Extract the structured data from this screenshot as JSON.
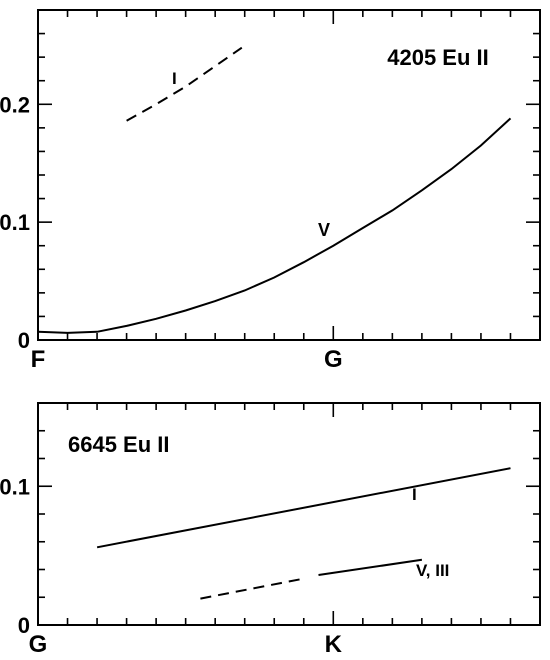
{
  "chart_data": [
    {
      "type": "line",
      "title": "4205  Eu II",
      "xlabel": "",
      "ylabel": "",
      "x_ticks": [
        {
          "label": "F",
          "x": 0
        },
        {
          "label": "G",
          "x": 10
        }
      ],
      "xlim": [
        0,
        17
      ],
      "ylim": [
        0,
        0.28
      ],
      "y_ticks": [
        {
          "label": "0",
          "value": 0
        },
        {
          "label": "0.1",
          "value": 0.1
        },
        {
          "label": "0.2",
          "value": 0.2
        }
      ],
      "series": [
        {
          "name": "I",
          "style": "dashed",
          "x": [
            3,
            4,
            5,
            6.9
          ],
          "y": [
            0.186,
            0.2,
            0.215,
            0.248
          ]
        },
        {
          "name": "V",
          "style": "solid",
          "x": [
            0,
            1,
            2,
            3,
            4,
            5,
            6,
            7,
            8,
            9,
            10,
            11,
            12,
            13,
            14,
            15,
            16
          ],
          "y": [
            0.007,
            0.006,
            0.007,
            0.012,
            0.018,
            0.025,
            0.033,
            0.042,
            0.053,
            0.066,
            0.08,
            0.095,
            0.11,
            0.127,
            0.145,
            0.165,
            0.188
          ]
        }
      ],
      "grid": false,
      "legend": "none"
    },
    {
      "type": "line",
      "title": "6645  Eu II",
      "xlabel": "",
      "ylabel": "",
      "x_ticks": [
        {
          "label": "G",
          "x": 0
        },
        {
          "label": "K",
          "x": 10
        }
      ],
      "xlim": [
        0,
        17
      ],
      "ylim": [
        0,
        0.16
      ],
      "y_ticks": [
        {
          "label": "0",
          "value": 0
        },
        {
          "label": "0.1",
          "value": 0.1
        }
      ],
      "series": [
        {
          "name": "I",
          "style": "solid",
          "x": [
            2,
            16
          ],
          "y": [
            0.056,
            0.113
          ]
        },
        {
          "name": "V, III",
          "style": "dashed",
          "x": [
            5.5,
            8.9
          ],
          "y": [
            0.019,
            0.033
          ]
        },
        {
          "name": "V, III",
          "style": "solid",
          "x": [
            9.5,
            13
          ],
          "y": [
            0.036,
            0.047
          ]
        }
      ],
      "grid": false,
      "legend": "none"
    }
  ]
}
